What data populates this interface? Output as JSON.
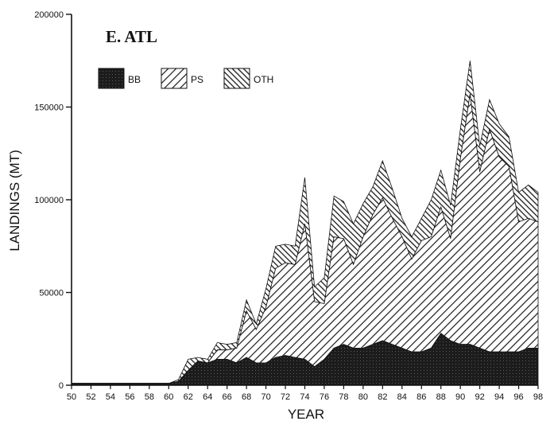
{
  "chart_data": {
    "type": "area",
    "stacked": true,
    "panel_title": "E. ATL",
    "xlabel": "YEAR",
    "ylabel": "LANDINGS (MT)",
    "ylim": [
      0,
      200000
    ],
    "xlim": [
      1950,
      1998
    ],
    "y_ticks": [
      0,
      50000,
      100000,
      150000,
      200000
    ],
    "y_tick_labels": [
      "0",
      "50000",
      "100000",
      "150000",
      "200000"
    ],
    "x_ticks": [
      1950,
      1952,
      1954,
      1956,
      1958,
      1960,
      1962,
      1964,
      1966,
      1968,
      1970,
      1972,
      1974,
      1976,
      1978,
      1980,
      1982,
      1984,
      1986,
      1988,
      1990,
      1992,
      1994,
      1996,
      1998
    ],
    "x_tick_labels": [
      "50",
      "52",
      "54",
      "56",
      "58",
      "60",
      "62",
      "64",
      "66",
      "68",
      "70",
      "72",
      "74",
      "76",
      "78",
      "80",
      "82",
      "84",
      "86",
      "88",
      "90",
      "92",
      "94",
      "96",
      "98"
    ],
    "legend_position": "top-left",
    "x": [
      1950,
      1951,
      1952,
      1953,
      1954,
      1955,
      1956,
      1957,
      1958,
      1959,
      1960,
      1961,
      1962,
      1963,
      1964,
      1965,
      1966,
      1967,
      1968,
      1969,
      1970,
      1971,
      1972,
      1973,
      1974,
      1975,
      1976,
      1977,
      1978,
      1979,
      1980,
      1981,
      1982,
      1983,
      1984,
      1985,
      1986,
      1987,
      1988,
      1989,
      1990,
      1991,
      1992,
      1993,
      1994,
      1995,
      1996,
      1997,
      1998
    ],
    "series": [
      {
        "name": "BB",
        "pattern": "solid",
        "color": "#1a1a1a",
        "values": [
          1000,
          1000,
          1000,
          1000,
          1000,
          1000,
          1000,
          1000,
          1000,
          1000,
          1000,
          2000,
          8000,
          13000,
          12000,
          14000,
          14000,
          12000,
          15000,
          12000,
          12000,
          15000,
          16000,
          15000,
          14000,
          10000,
          14000,
          20000,
          22000,
          20000,
          20000,
          22000,
          24000,
          22000,
          20000,
          18000,
          18000,
          20000,
          28000,
          24000,
          22000,
          22000,
          20000,
          18000,
          18000,
          18000,
          18000,
          20000,
          20000
        ]
      },
      {
        "name": "PS",
        "pattern": "hatch-forward",
        "color": "#222222",
        "values": [
          0,
          0,
          0,
          0,
          0,
          0,
          0,
          0,
          0,
          0,
          0,
          0,
          0,
          0,
          0,
          5000,
          5000,
          8000,
          25000,
          18000,
          30000,
          48000,
          50000,
          50000,
          73000,
          35000,
          30000,
          60000,
          57000,
          45000,
          60000,
          70000,
          77000,
          68000,
          60000,
          50000,
          60000,
          60000,
          68000,
          55000,
          100000,
          135000,
          95000,
          120000,
          105000,
          100000,
          70000,
          70000,
          68000
        ]
      },
      {
        "name": "OTH",
        "pattern": "hatch-backward",
        "color": "#222222",
        "values": [
          0,
          0,
          0,
          0,
          0,
          0,
          0,
          0,
          0,
          0,
          0,
          1000,
          6000,
          2000,
          2000,
          4000,
          3000,
          3000,
          6000,
          3000,
          10000,
          12000,
          10000,
          10000,
          25000,
          8000,
          14000,
          22000,
          20000,
          22000,
          18000,
          15000,
          20000,
          16000,
          10000,
          12000,
          12000,
          20000,
          20000,
          18000,
          16000,
          18000,
          14000,
          16000,
          18000,
          16000,
          16000,
          18000,
          16000
        ]
      }
    ]
  }
}
